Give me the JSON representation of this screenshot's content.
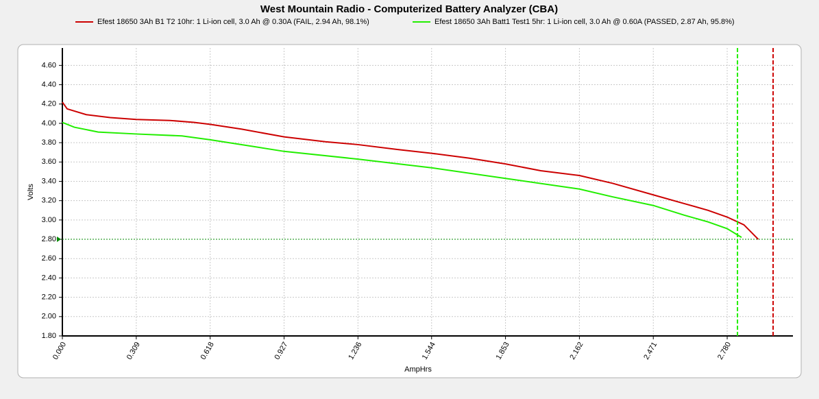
{
  "chart_data": {
    "type": "line",
    "title": "West Mountain Radio - Computerized Battery Analyzer (CBA)",
    "x_label": "AmpHrs",
    "y_label": "Volts",
    "xlim": [
      0,
      3.055
    ],
    "ylim": [
      1.8,
      4.78
    ],
    "xticks": [
      {
        "value": 0,
        "label": "0.000"
      },
      0.309,
      0.618,
      0.927,
      1.236,
      1.544,
      1.853,
      2.162,
      2.471,
      {
        "value": 2.78,
        "label": "2.780"
      }
    ],
    "yticks": [
      {
        "value": 1.8,
        "label": "1.80"
      },
      {
        "value": 2.0,
        "label": "2.00"
      },
      {
        "value": 2.2,
        "label": "2.20"
      },
      {
        "value": 2.4,
        "label": "2.40"
      },
      {
        "value": 2.6,
        "label": "2.60"
      },
      {
        "value": 2.8,
        "label": "2.80"
      },
      {
        "value": 3.0,
        "label": "3.00"
      },
      {
        "value": 3.2,
        "label": "3.20"
      },
      {
        "value": 3.4,
        "label": "3.40"
      },
      {
        "value": 3.6,
        "label": "3.60"
      },
      {
        "value": 3.8,
        "label": "3.80"
      },
      {
        "value": 4.0,
        "label": "4.00"
      },
      {
        "value": 4.2,
        "label": "4.20"
      },
      {
        "value": 4.4,
        "label": "4.40"
      },
      {
        "value": 4.6,
        "label": "4.60"
      }
    ],
    "grid": true,
    "cutoff": {
      "y": 2.8,
      "color": "#008800"
    },
    "series": [
      {
        "name": "Efest 18650 3Ah B1 T2 10hr: 1 Li-ion cell, 3.0 Ah @ 0.30A (FAIL, 2.94 Ah, 98.1%)",
        "color": "#cc0000",
        "marker_x": 2.972,
        "x": [
          0,
          0.02,
          0.1,
          0.2,
          0.309,
          0.45,
          0.55,
          0.618,
          0.75,
          0.927,
          1.1,
          1.236,
          1.4,
          1.544,
          1.7,
          1.853,
          2.0,
          2.162,
          2.3,
          2.471,
          2.6,
          2.7,
          2.78,
          2.85,
          2.91
        ],
        "values": [
          4.22,
          4.15,
          4.09,
          4.06,
          4.04,
          4.03,
          4.01,
          3.99,
          3.94,
          3.86,
          3.81,
          3.78,
          3.73,
          3.69,
          3.64,
          3.58,
          3.51,
          3.46,
          3.38,
          3.26,
          3.17,
          3.1,
          3.03,
          2.95,
          2.8
        ]
      },
      {
        "name": "Efest 18650 3Ah Batt1 Test1 5hr: 1 Li-ion cell, 3.0 Ah @ 0.60A (PASSED, 2.87 Ah, 95.8%)",
        "color": "#22ee00",
        "marker_x": 2.823,
        "x": [
          0,
          0.05,
          0.15,
          0.309,
          0.5,
          0.618,
          0.8,
          0.927,
          1.236,
          1.544,
          1.853,
          2.162,
          2.3,
          2.471,
          2.6,
          2.7,
          2.78,
          2.84
        ],
        "values": [
          4.01,
          3.96,
          3.91,
          3.89,
          3.87,
          3.83,
          3.76,
          3.71,
          3.63,
          3.54,
          3.43,
          3.32,
          3.24,
          3.15,
          3.05,
          2.98,
          2.91,
          2.82
        ]
      }
    ]
  }
}
